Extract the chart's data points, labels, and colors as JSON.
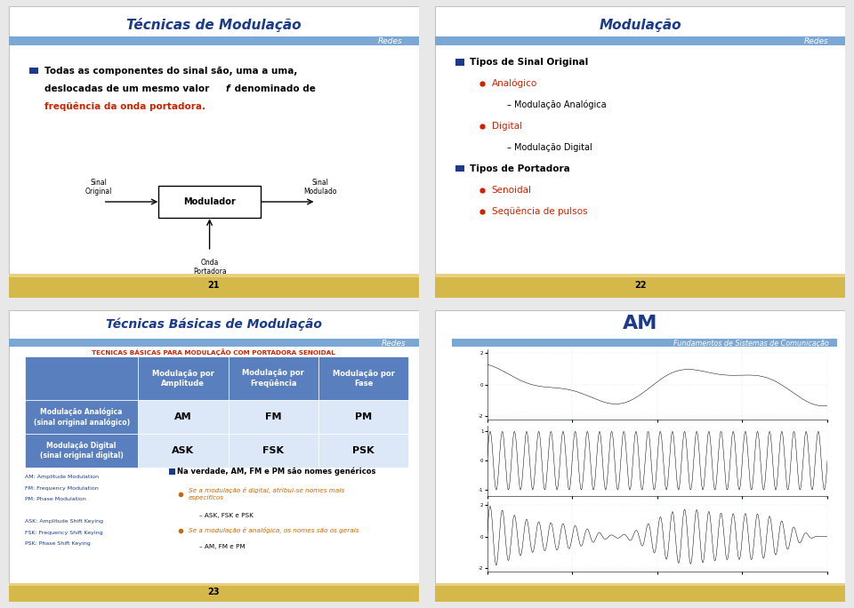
{
  "bg_color": "#e8e8e8",
  "slide_bg": "#ffffff",
  "header_bar_color": "#7ba7d4",
  "footer_bar_color": "#d4b84a",
  "footer_bar_color2": "#e8d080",
  "title_color": "#1a3a8c",
  "red_text_color": "#cc2200",
  "orange_text_color": "#cc6600",
  "table_header_bg": "#5a7fbf",
  "table_cell_bg": "#dce8f8",
  "slide1_title": "Técnicas de Modulação",
  "slide1_redes": "Redes",
  "slide1_bullet1": "Todas as componentes do sinal são, uma a uma,",
  "slide1_bullet2": "deslocadas de um mesmo valor ",
  "slide1_bullet2b": "f",
  "slide1_bullet2c": " denominado de",
  "slide1_bullet3_red": "freqüência da onda portadora.",
  "slide1_page": "21",
  "slide2_title": "Modulação",
  "slide2_redes": "Redes",
  "slide2_items": [
    {
      "text": "Tipos de Sinal Original",
      "level": 0,
      "bold": true,
      "color": "black"
    },
    {
      "text": "Analógico",
      "level": 1,
      "bold": false,
      "color": "#cc2200"
    },
    {
      "text": "Modulação Analógica",
      "level": 2,
      "bold": false,
      "color": "black"
    },
    {
      "text": "Digital",
      "level": 1,
      "bold": false,
      "color": "#cc2200"
    },
    {
      "text": "Modulação Digital",
      "level": 2,
      "bold": false,
      "color": "black"
    },
    {
      "text": "Tipos de Portadora",
      "level": 0,
      "bold": true,
      "color": "black"
    },
    {
      "text": "Senoidal",
      "level": 1,
      "bold": false,
      "color": "#cc2200"
    },
    {
      "text": "Seqüência de pulsos",
      "level": 1,
      "bold": false,
      "color": "#cc2200"
    }
  ],
  "slide2_page": "22",
  "slide3_title": "Técnicas Básicas de Modulação",
  "slide3_redes": "Redes",
  "slide3_subtitle": "TECNICAS BÁSICAS PARA MODULAÇÃO COM PORTADORA SENOIDAL",
  "slide3_col_headers": [
    "Modulação por\nAmplitude",
    "Modulação por\nFreqüência",
    "Modulação por\nFase"
  ],
  "slide3_row1_label": "Modulação Analógica\n(sinal original analógico)",
  "slide3_row1_vals": [
    "AM",
    "FM",
    "PM"
  ],
  "slide3_row2_label": "Modulação Digital\n(sinal original digital)",
  "slide3_row2_vals": [
    "ASK",
    "FSK",
    "PSK"
  ],
  "slide3_notes_left": [
    "AM: Amplitude Modulation",
    "FM: Frequency Modulation",
    "PM: Phase Modulation",
    "",
    "ASK: Amplitude Shift Keying",
    "FSK: Frequency Shift Keying",
    "PSK: Phase Shift Keying"
  ],
  "slide3_bullet_main": "Na verdade, AM, FM e PM são nomes genéricos",
  "slide3_sub1_orange": "Se a modulação é digital, atribui-se nomes mais\nespecíficos",
  "slide3_sub1_dash": "ASK, FSK e PSK",
  "slide3_sub2_orange": "Se a modulação é analógica, os nomes são os gerais",
  "slide3_sub2_dash": "AM, FM e PM",
  "slide3_page": "23",
  "slide4_title": "AM",
  "slide4_subtitle": "Fundamentos de Sistemas de Comunicação"
}
